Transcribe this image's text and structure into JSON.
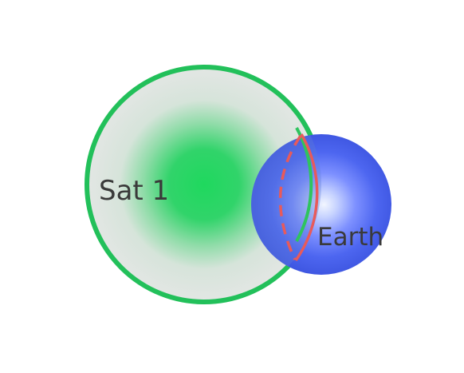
{
  "diagram": {
    "nodes": [
      {
        "id": "sat1",
        "label": "Sat 1",
        "color": "#19d55a",
        "outline_color": "#22c05a"
      },
      {
        "id": "earth",
        "label": "Earth",
        "color": "#4a62ee"
      }
    ],
    "overlap_boundary_color": "#e85a5a"
  }
}
